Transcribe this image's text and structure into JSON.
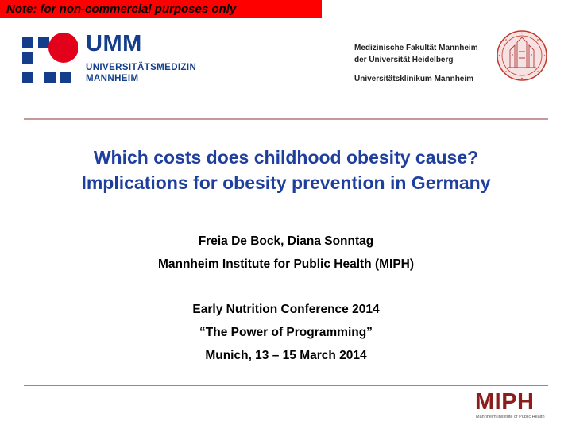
{
  "note": "Note: for non-commercial purposes only",
  "umm_logo": {
    "name": "UMM",
    "line1": "UNIVERSITÄTSMEDIZIN",
    "line2": "MANNHEIM",
    "colors": {
      "blue": "#143e8c",
      "red": "#e2001a"
    }
  },
  "heidelberg": {
    "line1": "Medizinische Fakultät Mannheim",
    "line2": "der Universität Heidelberg",
    "line3": "Universitätsklinikum Mannheim"
  },
  "title": {
    "line1": "Which costs does childhood obesity cause?",
    "line2": "Implications for obesity prevention in Germany"
  },
  "authors": {
    "names": "Freia De Bock, Diana Sonntag",
    "institute": "Mannheim Institute for Public Health (MIPH)"
  },
  "conference": {
    "name": "Early Nutrition Conference 2014",
    "motto": "“The Power of Programming”",
    "place_date": "Munich, 13 – 15 March 2014"
  },
  "miph_logo": {
    "name": "MIPH",
    "sub": "Mannheim Institute of Public Health"
  },
  "colors": {
    "title": "#1f3f9e",
    "note_bg": "#ff0000",
    "rule_top": "#c49a9a",
    "rule_bottom": "#7a8fb8",
    "miph": "#8c1d1d"
  }
}
